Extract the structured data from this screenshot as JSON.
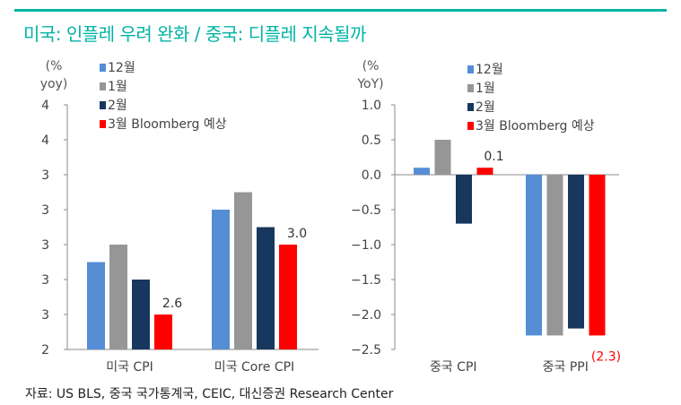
{
  "title": "미국: 인플레 우려 완화 / 중국: 디플레 지속될까",
  "footer": "자료: US BLS, 중국 국가통계국, CEIC, 대신증권 Research Center",
  "chart_data": [
    {
      "type": "bar",
      "ylabel": [
        "(%",
        "yoy)"
      ],
      "categories": [
        "미국 CPI",
        "미국 Core CPI"
      ],
      "ylim": [
        2.4,
        3.8
      ],
      "yticks": [
        3.8,
        3.6,
        3.4,
        3.2,
        3.0,
        2.8,
        2.6,
        2.4
      ],
      "ytick_labels": [
        "4",
        "4",
        "3",
        "3",
        "3",
        "3",
        "3",
        "2"
      ],
      "series": [
        {
          "name": "12월",
          "color": "#558ed5",
          "values": [
            2.9,
            3.2
          ]
        },
        {
          "name": "1월",
          "color": "#969696",
          "values": [
            3.0,
            3.3
          ]
        },
        {
          "name": "2월",
          "color": "#17375e",
          "values": [
            2.8,
            3.1
          ]
        },
        {
          "name": "3월 Bloomberg 예상",
          "color": "#ff0000",
          "values": [
            2.6,
            3.0
          ]
        }
      ],
      "data_labels": [
        {
          "series": 3,
          "index": 0,
          "text": "2.6",
          "color": "#333333"
        },
        {
          "series": 3,
          "index": 1,
          "text": "3.0",
          "color": "#333333"
        }
      ],
      "legend": "top-left"
    },
    {
      "type": "bar",
      "ylabel": [
        "(%",
        "YoY)"
      ],
      "categories": [
        "중국 CPI",
        "중국 PPI"
      ],
      "ylim": [
        -2.5,
        1.0
      ],
      "yticks": [
        1.0,
        0.5,
        0.0,
        -0.5,
        -1.0,
        -1.5,
        -2.0,
        -2.5
      ],
      "ytick_labels": [
        "1.0",
        "0.5",
        "0.0",
        "−0.5",
        "−1.0",
        "−1.5",
        "−2.0",
        "−2.5"
      ],
      "series": [
        {
          "name": "12월",
          "color": "#558ed5",
          "values": [
            0.1,
            -2.3
          ]
        },
        {
          "name": "1월",
          "color": "#969696",
          "values": [
            0.5,
            -2.3
          ]
        },
        {
          "name": "2월",
          "color": "#17375e",
          "values": [
            -0.7,
            -2.2
          ]
        },
        {
          "name": "3월 Bloomberg 예상",
          "color": "#ff0000",
          "values": [
            0.1,
            -2.3
          ]
        }
      ],
      "data_labels": [
        {
          "series": 3,
          "index": 0,
          "text": "0.1",
          "color": "#333333"
        },
        {
          "series": 3,
          "index": 1,
          "text": "(2.3)",
          "color": "#ff0000"
        }
      ],
      "legend": "top-right"
    }
  ]
}
